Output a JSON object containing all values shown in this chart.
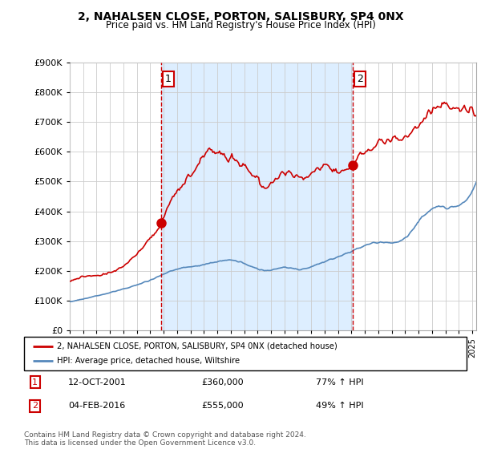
{
  "title": "2, NAHALSEN CLOSE, PORTON, SALISBURY, SP4 0NX",
  "subtitle": "Price paid vs. HM Land Registry's House Price Index (HPI)",
  "hpi_label": "HPI: Average price, detached house, Wiltshire",
  "property_label": "2, NAHALSEN CLOSE, PORTON, SALISBURY, SP4 0NX (detached house)",
  "sale1_date": "12-OCT-2001",
  "sale1_price": 360000,
  "sale1_hpi": "77% ↑ HPI",
  "sale1_x": 2001.79,
  "sale2_date": "04-FEB-2016",
  "sale2_price": 555000,
  "sale2_hpi": "49% ↑ HPI",
  "sale2_x": 2016.09,
  "red_color": "#cc0000",
  "blue_color": "#5588bb",
  "shade_color": "#ddeeff",
  "marker_border_color": "#cc0000",
  "vline_color": "#cc0000",
  "grid_color": "#cccccc",
  "background_color": "#ffffff",
  "footer": "Contains HM Land Registry data © Crown copyright and database right 2024.\nThis data is licensed under the Open Government Licence v3.0.",
  "ylim": [
    0,
    900000
  ],
  "xlim_start": 1995.0,
  "xlim_end": 2025.3
}
